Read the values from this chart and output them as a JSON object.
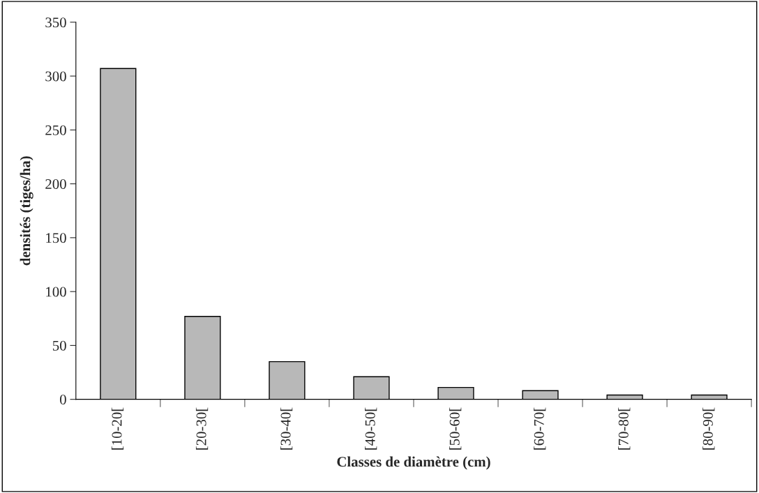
{
  "chart_data": {
    "type": "bar",
    "categories": [
      "[10-20[",
      "[20-30[",
      "[30-40[",
      "[40-50[",
      "[50-60[",
      "[60-70[",
      "[70-80[",
      "[80-90["
    ],
    "values": [
      307,
      77,
      35,
      21,
      11,
      8,
      4,
      4
    ],
    "color": "#b8b8b8",
    "xlabel": "Classes de diamètre (cm)",
    "ylabel": "densités (tiges/ha)",
    "ylim": [
      0,
      350
    ],
    "yticks": [
      0,
      50,
      100,
      150,
      200,
      250,
      300,
      350
    ],
    "grid": false
  }
}
